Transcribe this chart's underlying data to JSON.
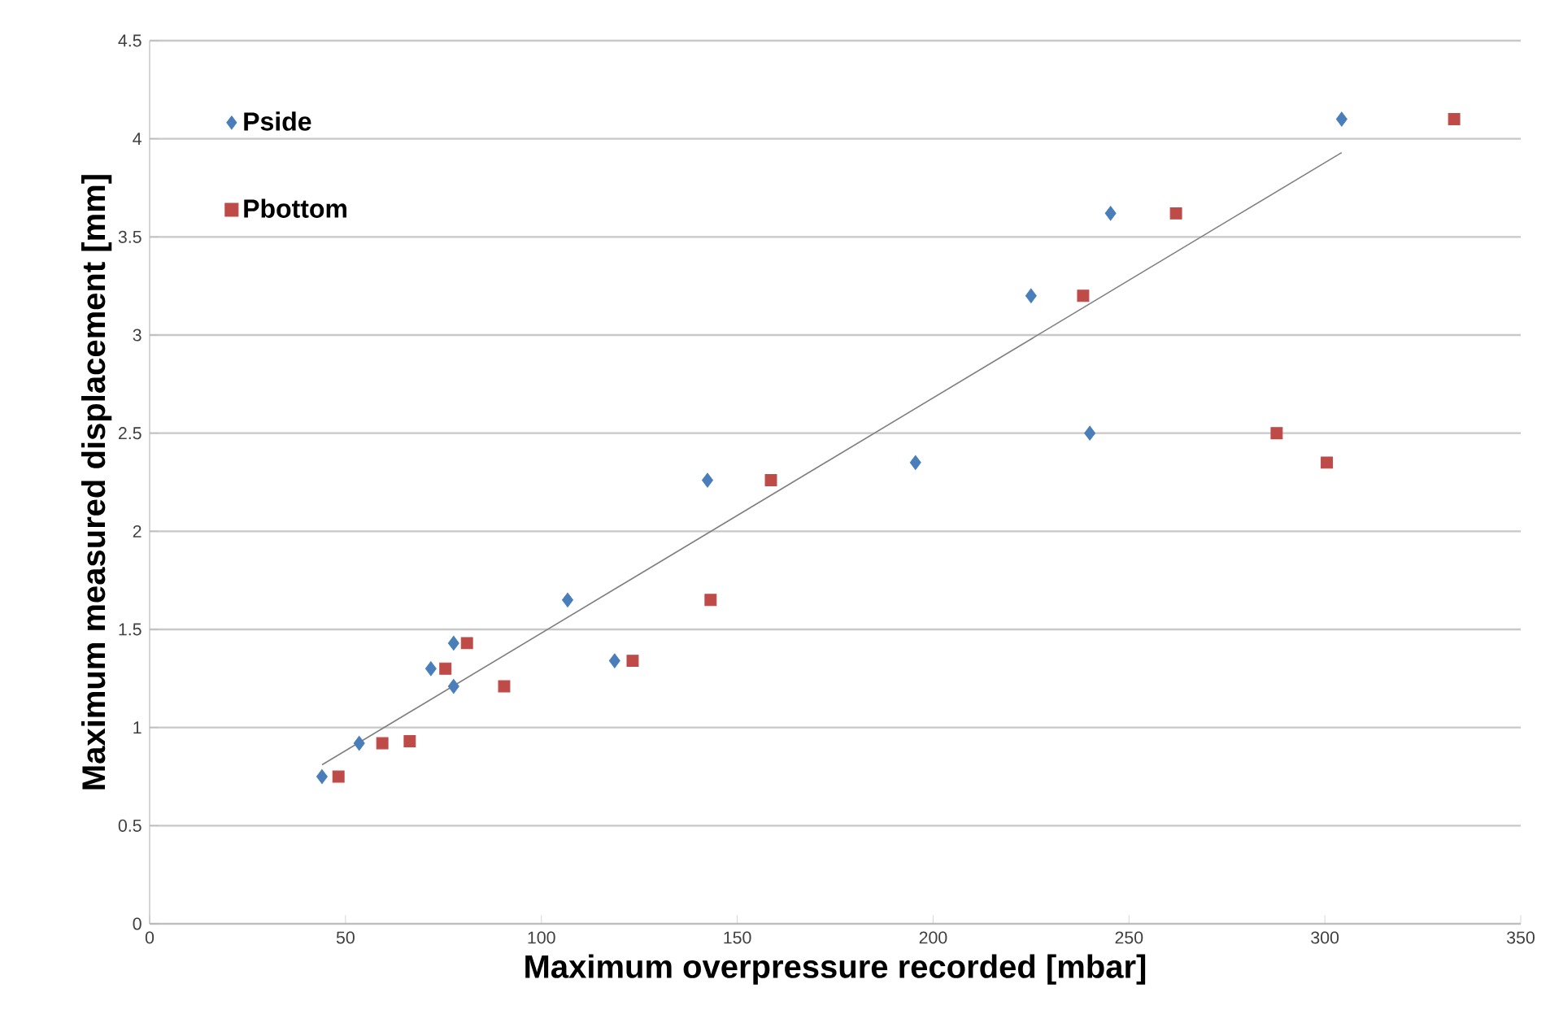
{
  "chart_data": {
    "type": "scatter",
    "xlabel": "Maximum overpressure recorded [mbar]",
    "ylabel": "Maximum measured displacement [mm]",
    "xlim": [
      0,
      350
    ],
    "xticks": [
      0,
      50,
      100,
      150,
      200,
      250,
      300,
      350
    ],
    "ylim": [
      0,
      4.5
    ],
    "yticks": [
      0,
      0.5,
      1,
      1.5,
      2,
      2.5,
      3,
      3.5,
      4,
      4.5
    ],
    "grid": "y",
    "legend": "top left",
    "series": [
      {
        "name": "Pside",
        "color": "#4a7ebb",
        "marker": "diamond",
        "x": [
          44,
          53.5,
          71.8,
          77.6,
          77.6,
          106.7,
          118.7,
          142.4,
          195.5,
          225,
          240,
          245.3,
          304.3
        ],
        "values": [
          0.75,
          0.92,
          1.3,
          1.43,
          1.21,
          1.65,
          1.34,
          2.26,
          2.35,
          3.2,
          2.5,
          3.62,
          4.1
        ]
      },
      {
        "name": "Pbottom",
        "color": "#be4b48",
        "marker": "square",
        "x": [
          48.2,
          59.4,
          66.4,
          75.5,
          81,
          90.5,
          123.3,
          143.2,
          158.6,
          238.3,
          262,
          287.7,
          300.5,
          333
        ],
        "values": [
          0.75,
          0.92,
          0.93,
          1.3,
          1.43,
          1.21,
          1.34,
          1.65,
          2.26,
          3.2,
          3.62,
          2.5,
          2.35,
          4.1
        ]
      },
      {
        "type": "line",
        "color": "#808080",
        "marker": "none",
        "line_style": "solid",
        "x": [
          44,
          304.3
        ],
        "values": [
          0.81,
          3.93
        ]
      }
    ]
  }
}
